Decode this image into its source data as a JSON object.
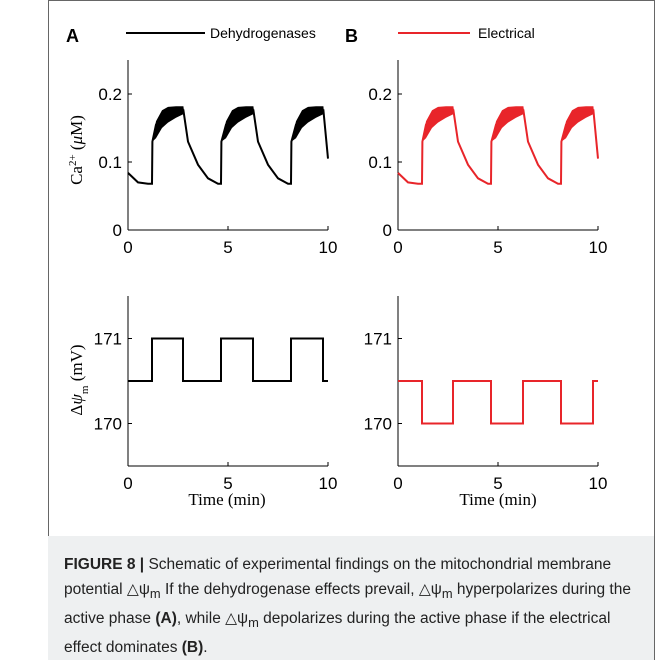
{
  "figure": {
    "panel_labels": [
      "A",
      "B"
    ],
    "caption": {
      "label": "FIGURE 8 |",
      "text_1": " Schematic of experimental findings on the mitochondrial membrane potential △ψ",
      "sub_1": "m",
      "text_2": " If the dehydrogenase effects prevail, △ψ",
      "sub_2": "m",
      "text_3": " hyperpolarizes during the active phase ",
      "bold_A": "(A)",
      "text_4": ", while △ψ",
      "sub_3": "m",
      "text_5": " depolarizes during the active phase if the electrical effect dominates ",
      "bold_B": "(B)",
      "text_6": "."
    }
  },
  "chart_data": [
    {
      "type": "line",
      "panel": "A",
      "legend": "Dehydrogenases",
      "color": "#000000",
      "ylabel": "Ca2+ (μM)",
      "xlabel": "",
      "xlim": [
        0,
        10
      ],
      "ylim": [
        0,
        0.25
      ],
      "xticks": [
        "0",
        "5",
        "10"
      ],
      "yticks": [
        "0",
        "0.1",
        "0.2"
      ],
      "x": [
        0,
        0.5,
        1.0,
        1.2,
        1.22,
        1.4,
        1.7,
        2.0,
        2.4,
        2.75,
        2.77,
        3.0,
        3.5,
        4.0,
        4.5,
        4.65,
        4.67,
        4.9,
        5.2,
        5.5,
        5.9,
        6.25,
        6.27,
        6.5,
        7.0,
        7.5,
        8.0,
        8.15,
        8.17,
        8.4,
        8.7,
        9.0,
        9.4,
        9.75,
        9.77,
        10.0
      ],
      "y": [
        0.084,
        0.07,
        0.068,
        0.068,
        0.13,
        0.155,
        0.17,
        0.176,
        0.176,
        0.176,
        0.176,
        0.13,
        0.096,
        0.076,
        0.068,
        0.068,
        0.13,
        0.155,
        0.17,
        0.176,
        0.176,
        0.176,
        0.176,
        0.13,
        0.096,
        0.076,
        0.068,
        0.068,
        0.13,
        0.155,
        0.17,
        0.176,
        0.176,
        0.176,
        0.176,
        0.105
      ],
      "y_low": [
        0.084,
        0.07,
        0.068,
        0.068,
        0.13,
        0.135,
        0.15,
        0.158,
        0.165,
        0.17,
        0.17,
        0.13,
        0.096,
        0.076,
        0.068,
        0.068,
        0.13,
        0.135,
        0.15,
        0.158,
        0.165,
        0.17,
        0.17,
        0.13,
        0.096,
        0.076,
        0.068,
        0.068,
        0.13,
        0.135,
        0.15,
        0.158,
        0.165,
        0.17,
        0.17,
        0.105
      ],
      "y_high": [
        0.084,
        0.07,
        0.068,
        0.068,
        0.13,
        0.16,
        0.176,
        0.181,
        0.182,
        0.182,
        0.182,
        0.13,
        0.096,
        0.076,
        0.068,
        0.068,
        0.13,
        0.16,
        0.176,
        0.181,
        0.182,
        0.182,
        0.182,
        0.13,
        0.096,
        0.076,
        0.068,
        0.068,
        0.13,
        0.16,
        0.176,
        0.181,
        0.182,
        0.182,
        0.182,
        0.105
      ]
    },
    {
      "type": "line",
      "panel": "B",
      "legend": "Electrical",
      "color": "#e8252a",
      "ylabel": "",
      "xlabel": "",
      "xlim": [
        0,
        10
      ],
      "ylim": [
        0,
        0.25
      ],
      "xticks": [
        "0",
        "5",
        "10"
      ],
      "yticks": [
        "0",
        "0.1",
        "0.2"
      ],
      "x": [
        0,
        0.5,
        1.0,
        1.2,
        1.22,
        1.4,
        1.7,
        2.0,
        2.4,
        2.75,
        2.77,
        3.0,
        3.5,
        4.0,
        4.5,
        4.65,
        4.67,
        4.9,
        5.2,
        5.5,
        5.9,
        6.25,
        6.27,
        6.5,
        7.0,
        7.5,
        8.0,
        8.15,
        8.17,
        8.4,
        8.7,
        9.0,
        9.4,
        9.75,
        9.77,
        10.0
      ],
      "y": [
        0.084,
        0.07,
        0.068,
        0.068,
        0.13,
        0.155,
        0.17,
        0.176,
        0.176,
        0.176,
        0.176,
        0.13,
        0.096,
        0.076,
        0.068,
        0.068,
        0.13,
        0.155,
        0.17,
        0.176,
        0.176,
        0.176,
        0.176,
        0.13,
        0.096,
        0.076,
        0.068,
        0.068,
        0.13,
        0.155,
        0.17,
        0.176,
        0.176,
        0.176,
        0.176,
        0.105
      ],
      "y_low": [
        0.084,
        0.07,
        0.068,
        0.068,
        0.13,
        0.135,
        0.15,
        0.158,
        0.165,
        0.17,
        0.17,
        0.13,
        0.096,
        0.076,
        0.068,
        0.068,
        0.13,
        0.135,
        0.15,
        0.158,
        0.165,
        0.17,
        0.17,
        0.13,
        0.096,
        0.076,
        0.068,
        0.068,
        0.13,
        0.135,
        0.15,
        0.158,
        0.165,
        0.17,
        0.17,
        0.105
      ],
      "y_high": [
        0.084,
        0.07,
        0.068,
        0.068,
        0.13,
        0.16,
        0.176,
        0.181,
        0.182,
        0.182,
        0.182,
        0.13,
        0.096,
        0.076,
        0.068,
        0.068,
        0.13,
        0.16,
        0.176,
        0.181,
        0.182,
        0.182,
        0.182,
        0.13,
        0.096,
        0.076,
        0.068,
        0.068,
        0.13,
        0.16,
        0.176,
        0.181,
        0.182,
        0.182,
        0.182,
        0.105
      ]
    },
    {
      "type": "line",
      "panel": "A",
      "color": "#000000",
      "ylabel": "Δψm (mV)",
      "xlabel": "Time (min)",
      "xlim": [
        0,
        10
      ],
      "ylim": [
        169.5,
        171.5
      ],
      "xticks": [
        "0",
        "5",
        "10"
      ],
      "yticks": [
        "170",
        "171"
      ],
      "x": [
        0,
        1.2,
        1.2,
        2.75,
        2.75,
        4.65,
        4.65,
        6.25,
        6.25,
        8.15,
        8.15,
        9.75,
        9.75,
        10
      ],
      "y": [
        170.5,
        170.5,
        171,
        171,
        170.5,
        170.5,
        171,
        171,
        170.5,
        170.5,
        171,
        171,
        170.5,
        170.5
      ]
    },
    {
      "type": "line",
      "panel": "B",
      "color": "#e8252a",
      "ylabel": "",
      "xlabel": "Time (min)",
      "xlim": [
        0,
        10
      ],
      "ylim": [
        169.5,
        171.5
      ],
      "xticks": [
        "0",
        "5",
        "10"
      ],
      "yticks": [
        "170",
        "171"
      ],
      "x": [
        0,
        1.2,
        1.2,
        2.75,
        2.75,
        4.65,
        4.65,
        6.25,
        6.25,
        8.15,
        8.15,
        9.75,
        9.75,
        10
      ],
      "y": [
        170.5,
        170.5,
        170,
        170,
        170.5,
        170.5,
        170,
        170,
        170.5,
        170.5,
        170,
        170,
        170.5,
        170.5
      ]
    }
  ]
}
